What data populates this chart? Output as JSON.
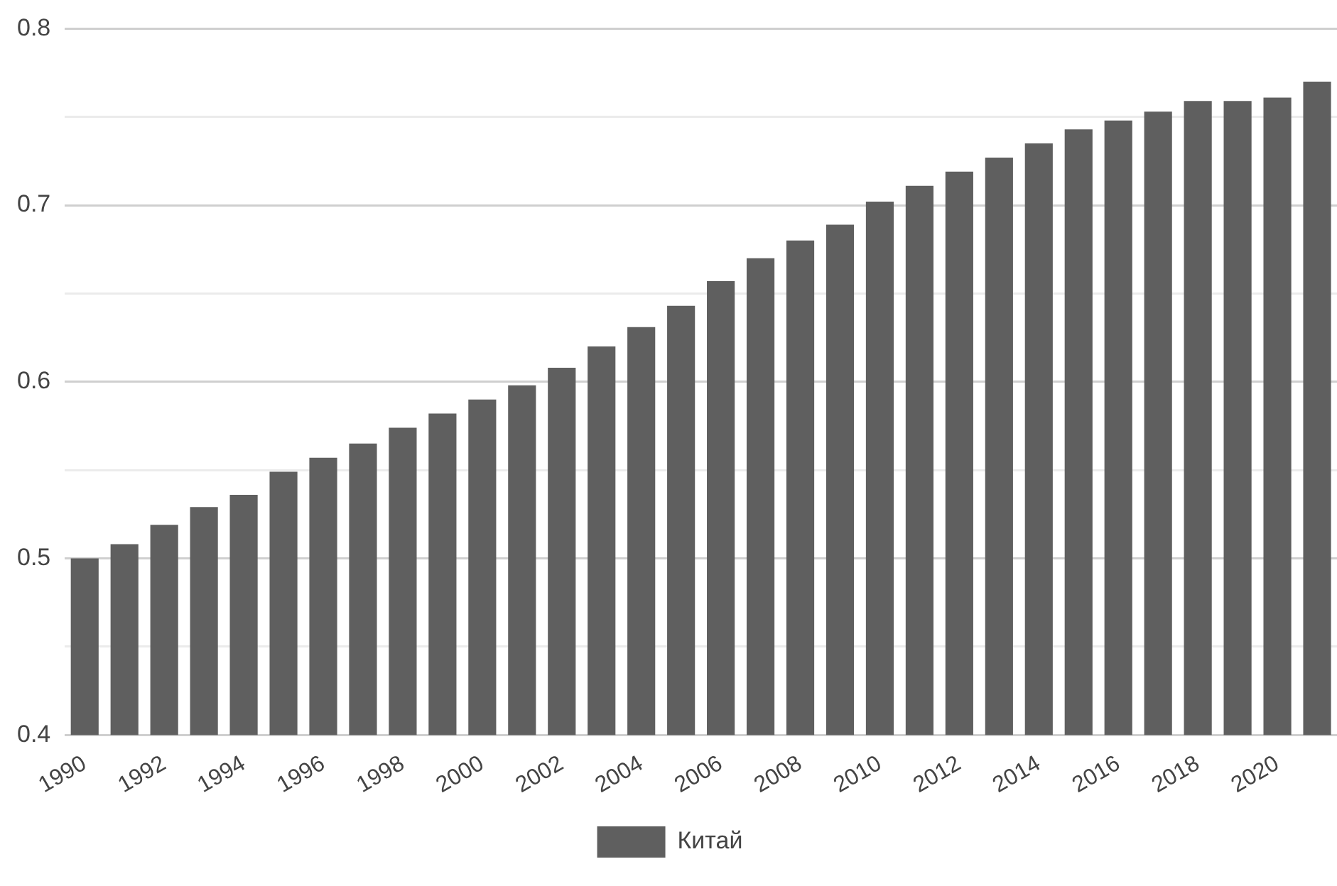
{
  "chart_data": {
    "type": "bar",
    "categories": [
      "1990",
      null,
      "1992",
      null,
      "1994",
      null,
      "1996",
      null,
      "1998",
      null,
      "2000",
      null,
      "2002",
      null,
      "2004",
      null,
      "2006",
      null,
      "2008",
      null,
      "2010",
      null,
      "2012",
      null,
      "2014",
      null,
      "2016",
      null,
      "2018",
      null,
      "2020",
      null
    ],
    "series": [
      {
        "name": "Китай",
        "color": "#5f5f5f",
        "values": [
          0.5,
          0.508,
          0.519,
          0.529,
          0.536,
          0.549,
          0.557,
          0.565,
          0.574,
          0.582,
          0.59,
          0.598,
          0.608,
          0.62,
          0.631,
          0.643,
          0.657,
          0.67,
          0.68,
          0.689,
          0.702,
          0.711,
          0.719,
          0.727,
          0.735,
          0.743,
          0.748,
          0.753,
          0.759,
          0.759,
          0.761,
          0.77
        ]
      }
    ],
    "ylim": [
      0.4,
      0.8
    ],
    "yticks": [
      0.4,
      {
        "value": 0.45,
        "label": null
      },
      0.5,
      {
        "value": 0.55,
        "label": null
      },
      0.6,
      {
        "value": 0.65,
        "label": null
      },
      0.7,
      {
        "value": 0.75,
        "label": null
      },
      0.8
    ],
    "grid": "y",
    "legend": "bottom"
  }
}
